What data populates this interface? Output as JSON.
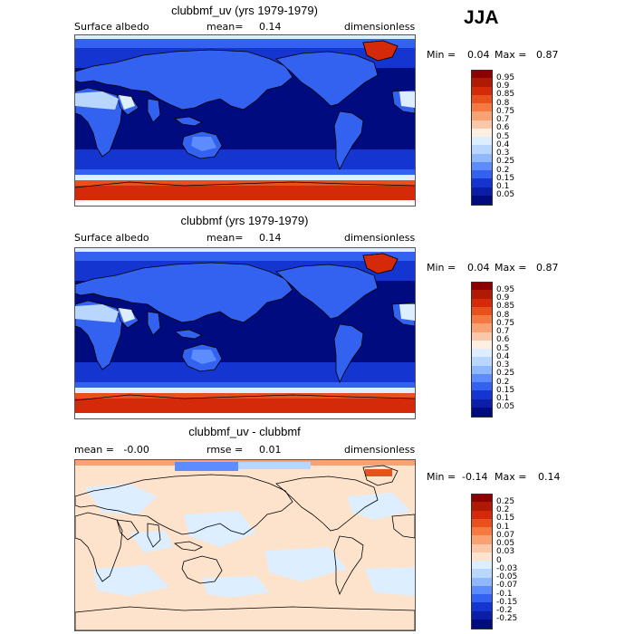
{
  "season": "JJA",
  "panels": [
    {
      "title": "clubbmf_uv (yrs 1979-1979)",
      "left_text": "Surface albedo",
      "mid_label": "mean=",
      "mid_value": "0.14",
      "right_text": "dimensionless",
      "min_label": "Min =",
      "min_value": "0.04",
      "max_label": "Max =",
      "max_value": "0.87",
      "type": "field"
    },
    {
      "title": "clubbmf (yrs 1979-1979)",
      "left_text": "Surface albedo",
      "mid_label": "mean=",
      "mid_value": "0.14",
      "right_text": "dimensionless",
      "min_label": "Min =",
      "min_value": "0.04",
      "max_label": "Max =",
      "max_value": "0.87",
      "type": "field"
    },
    {
      "title": "clubbmf_uv - clubbmf",
      "left_text": "mean =   -0.00",
      "mid_label": "rmse =",
      "mid_value": "0.01",
      "right_text": "dimensionless",
      "min_label": "Min =",
      "min_value": "-0.14",
      "max_label": "Max =",
      "max_value": "0.14",
      "type": "diff"
    }
  ],
  "colorbar_field": {
    "labels": [
      "0.95",
      "0.9",
      "0.85",
      "0.8",
      "0.75",
      "0.7",
      "0.6",
      "0.5",
      "0.4",
      "0.3",
      "0.25",
      "0.2",
      "0.15",
      "0.1",
      "0.05"
    ],
    "colors": [
      "#8b0000",
      "#b01a05",
      "#d42a0a",
      "#e8501e",
      "#f47a42",
      "#f8a274",
      "#fac8a8",
      "#fdf0e0",
      "#dceeff",
      "#b9d6ff",
      "#8fb8ff",
      "#5d8cff",
      "#3362f0",
      "#1535d0",
      "#0a1ea8",
      "#000b80"
    ]
  },
  "colorbar_diff": {
    "labels": [
      "0.25",
      "0.2",
      "0.15",
      "0.1",
      "0.07",
      "0.05",
      "0.03",
      "0",
      "-0.03",
      "-0.05",
      "-0.07",
      "-0.1",
      "-0.15",
      "-0.2",
      "-0.25"
    ],
    "colors": [
      "#8b0000",
      "#b01a05",
      "#d42a0a",
      "#e8501e",
      "#f47a42",
      "#f8a274",
      "#fac8a8",
      "#fde3cc",
      "#dceeff",
      "#b9d6ff",
      "#8fb8ff",
      "#5d8cff",
      "#3362f0",
      "#1535d0",
      "#0a1ea8",
      "#000b80"
    ]
  }
}
